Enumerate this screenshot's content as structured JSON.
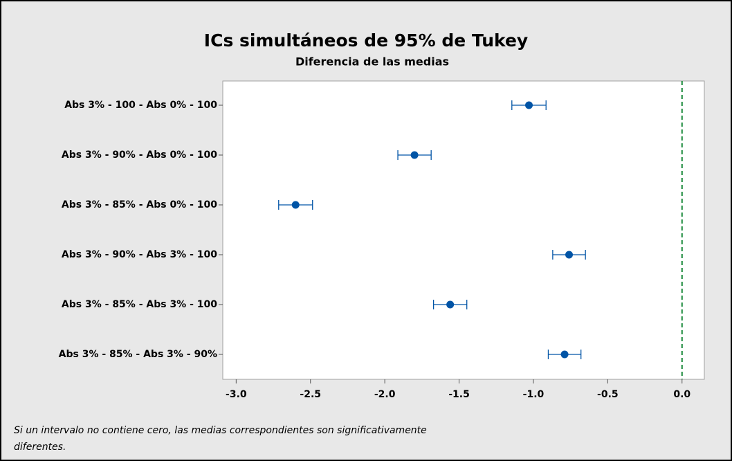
{
  "chart_data": {
    "type": "interval",
    "title": "ICs simultáneos de 95% de Tukey",
    "subtitle": "Diferencia de las medias",
    "categories": [
      "Abs 3% - 100 - Abs 0% - 100",
      "Abs 3% - 90% - Abs 0% - 100",
      "Abs 3% - 85% - Abs 0% - 100",
      "Abs 3% - 90% - Abs 3% - 100",
      "Abs 3% - 85% - Abs 3% - 100",
      "Abs 3% - 85% - Abs 3% - 90%"
    ],
    "values": [
      -1.03,
      -1.8,
      -2.6,
      -0.76,
      -1.56,
      -0.79
    ],
    "errors": [
      0.115,
      0.112,
      0.114,
      0.11,
      0.112,
      0.11
    ],
    "color": "#0054a6",
    "xlim": [
      -3.09,
      0.15
    ],
    "xticks": [
      {
        "value": -3,
        "label": "-3.0"
      },
      {
        "value": -2.5,
        "label": "-2.5"
      },
      {
        "value": -2,
        "label": "-2.0"
      },
      {
        "value": -1.5,
        "label": "-1.5"
      },
      {
        "value": -1,
        "label": "-1.0"
      },
      {
        "value": -0.5,
        "label": "-0.5"
      },
      {
        "value": 0,
        "label": "0.0"
      }
    ],
    "reference_line": 0,
    "reference_color": "#1a8a3a",
    "footnote": [
      "Si un intervalo no contiene cero, las medias correspondientes son significativamente",
      "diferentes."
    ]
  }
}
